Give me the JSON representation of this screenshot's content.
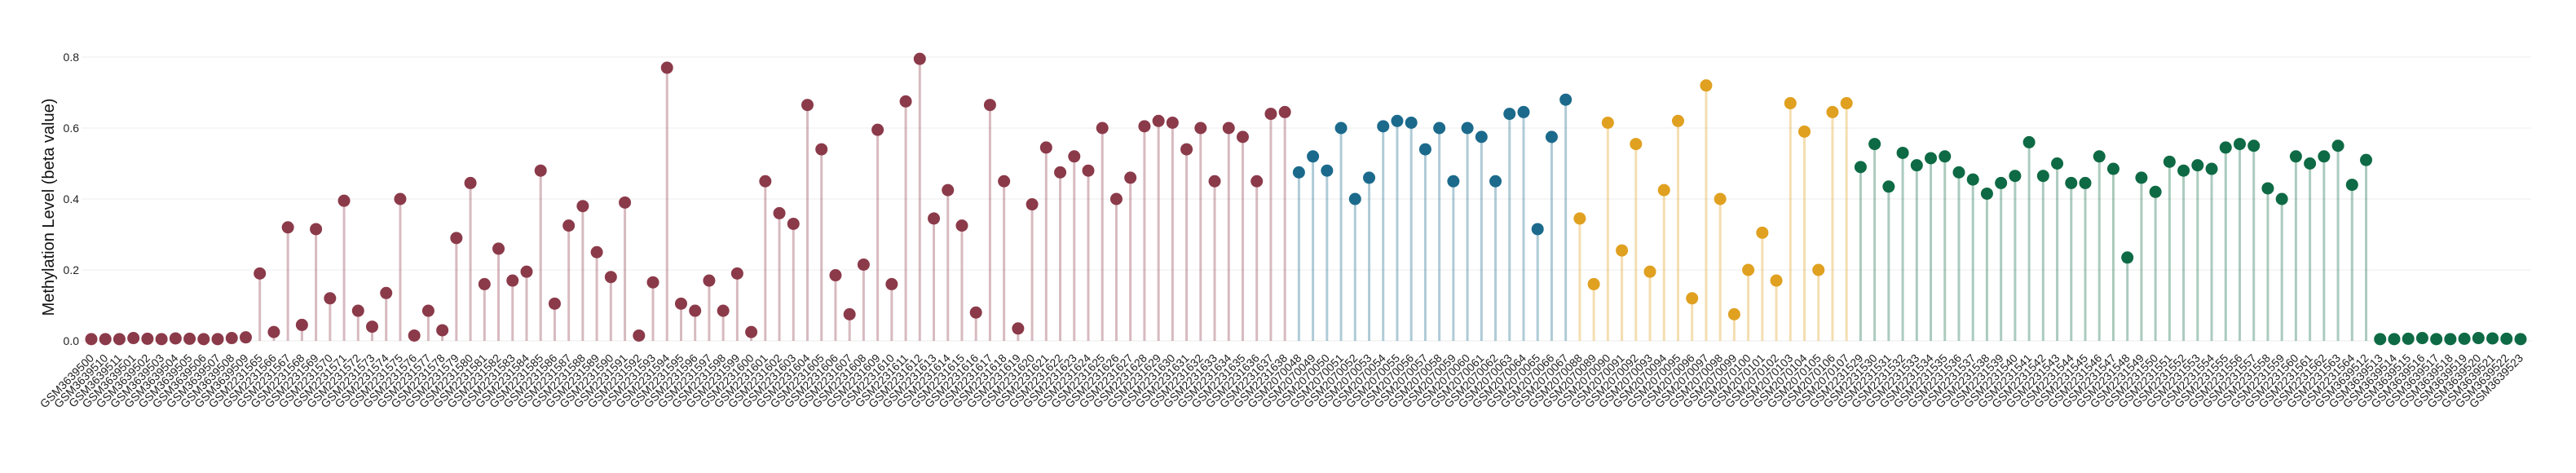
{
  "chart_data": {
    "type": "lollipop",
    "ylabel": "Methylation Level (beta value)",
    "ylim": [
      0,
      0.85
    ],
    "y_ticks": [
      "0.0",
      "0.2",
      "0.4",
      "0.6",
      "0.8"
    ],
    "grid": true,
    "legend": "none",
    "colors": {
      "red": "#8B3A4A",
      "blue": "#1B6A8C",
      "gold": "#E0A020",
      "green": "#0E6A44"
    },
    "series": [
      {
        "color": "red",
        "samples": [
          "GSM3639500",
          "GSM3639510",
          "GSM3639511",
          "GSM3639501",
          "GSM3639502",
          "GSM3639503",
          "GSM3639504",
          "GSM3639505",
          "GSM3639506",
          "GSM3639507",
          "GSM3639508",
          "GSM3639509"
        ],
        "values": [
          0.005,
          0.005,
          0.005,
          0.008,
          0.006,
          0.005,
          0.007,
          0.006,
          0.005,
          0.005,
          0.008,
          0.01
        ]
      },
      {
        "color": "red",
        "samples": [
          "GSM2231565",
          "GSM2231566",
          "GSM2231567",
          "GSM2231568",
          "GSM2231569",
          "GSM2231570",
          "GSM2231571",
          "GSM2231572",
          "GSM2231573",
          "GSM2231574",
          "GSM2231575",
          "GSM2231576",
          "GSM2231577",
          "GSM2231578",
          "GSM2231579",
          "GSM2231580",
          "GSM2231581",
          "GSM2231582",
          "GSM2231583",
          "GSM2231584",
          "GSM2231585",
          "GSM2231586",
          "GSM2231587",
          "GSM2231588",
          "GSM2231589",
          "GSM2231590",
          "GSM2231591",
          "GSM2231592",
          "GSM2231593",
          "GSM2231594",
          "GSM2231595",
          "GSM2231596",
          "GSM2231597",
          "GSM2231598",
          "GSM2231599",
          "GSM2231600",
          "GSM2231601",
          "GSM2231602",
          "GSM2231603",
          "GSM2231604",
          "GSM2231605",
          "GSM2231606",
          "GSM2231607",
          "GSM2231608",
          "GSM2231609",
          "GSM2231610",
          "GSM2231611",
          "GSM2231612",
          "GSM2231613",
          "GSM2231614",
          "GSM2231615",
          "GSM2231616",
          "GSM2231617",
          "GSM2231618",
          "GSM2231619",
          "GSM2231620",
          "GSM2231621",
          "GSM2231622",
          "GSM2231623",
          "GSM2231624",
          "GSM2231625",
          "GSM2231626",
          "GSM2231627",
          "GSM2231628",
          "GSM2231629",
          "GSM2231630",
          "GSM2231631",
          "GSM2231632",
          "GSM2231633",
          "GSM2231634",
          "GSM2231635",
          "GSM2231636",
          "GSM2231637",
          "GSM2231638"
        ],
        "values": [
          0.19,
          0.025,
          0.32,
          0.045,
          0.315,
          0.12,
          0.395,
          0.085,
          0.04,
          0.135,
          0.4,
          0.015,
          0.085,
          0.03,
          0.29,
          0.445,
          0.16,
          0.26,
          0.17,
          0.195,
          0.48,
          0.105,
          0.325,
          0.38,
          0.25,
          0.18,
          0.39,
          0.015,
          0.165,
          0.77,
          0.105,
          0.085,
          0.17,
          0.085,
          0.19,
          0.025,
          0.45,
          0.36,
          0.33,
          0.665,
          0.54,
          0.185,
          0.075,
          0.215,
          0.595,
          0.16,
          0.675,
          0.795,
          0.345,
          0.425,
          0.325,
          0.08,
          0.665,
          0.45,
          0.035,
          0.385,
          0.545,
          0.475,
          0.52,
          0.48,
          0.6,
          0.4,
          0.46,
          0.605,
          0.62,
          0.615,
          0.54,
          0.6,
          0.45,
          0.6,
          0.575,
          0.45,
          0.64,
          0.645
        ]
      },
      {
        "color": "blue",
        "samples": [
          "GSM2070048",
          "GSM2070049",
          "GSM2070050",
          "GSM2070051",
          "GSM2070052",
          "GSM2070053",
          "GSM2070054",
          "GSM2070055",
          "GSM2070056",
          "GSM2070057",
          "GSM2070058",
          "GSM2070059",
          "GSM2070060",
          "GSM2070061",
          "GSM2070062",
          "GSM2070063",
          "GSM2070064",
          "GSM2070065",
          "GSM2070066",
          "GSM2070067"
        ],
        "values": [
          0.475,
          0.52,
          0.48,
          0.6,
          0.4,
          0.46,
          0.605,
          0.62,
          0.615,
          0.54,
          0.6,
          0.45,
          0.6,
          0.575,
          0.45,
          0.64,
          0.645,
          0.315,
          0.575,
          0.68
        ]
      },
      {
        "color": "gold",
        "samples": [
          "GSM2070088",
          "GSM2070089",
          "GSM2070090",
          "GSM2070091",
          "GSM2070092",
          "GSM2070093",
          "GSM2070094",
          "GSM2070095",
          "GSM2070096",
          "GSM2070097",
          "GSM2070098",
          "GSM2070099",
          "GSM2070100",
          "GSM2070101",
          "GSM2070102",
          "GSM2070103",
          "GSM2070104",
          "GSM2070105",
          "GSM2070106",
          "GSM2070107"
        ],
        "values": [
          0.345,
          0.16,
          0.615,
          0.255,
          0.555,
          0.195,
          0.425,
          0.62,
          0.12,
          0.72,
          0.4,
          0.075,
          0.2,
          0.305,
          0.17,
          0.67,
          0.59,
          0.2,
          0.645,
          0.67
        ]
      },
      {
        "color": "green",
        "samples": [
          "GSM2231529",
          "GSM2231530",
          "GSM2231531",
          "GSM2231532",
          "GSM2231533",
          "GSM2231534",
          "GSM2231535",
          "GSM2231536",
          "GSM2231537",
          "GSM2231538",
          "GSM2231539",
          "GSM2231540",
          "GSM2231541",
          "GSM2231542",
          "GSM2231543",
          "GSM2231544",
          "GSM2231545",
          "GSM2231546",
          "GSM2231547",
          "GSM2231548",
          "GSM2231549",
          "GSM2231550",
          "GSM2231551",
          "GSM2231552",
          "GSM2231553",
          "GSM2231554",
          "GSM2231555",
          "GSM2231556",
          "GSM2231557",
          "GSM2231558",
          "GSM2231559",
          "GSM2231560",
          "GSM2231561",
          "GSM2231562",
          "GSM2231563",
          "GSM2231564"
        ],
        "values": [
          0.49,
          0.555,
          0.435,
          0.53,
          0.495,
          0.515,
          0.52,
          0.475,
          0.455,
          0.415,
          0.445,
          0.465,
          0.56,
          0.465,
          0.5,
          0.445,
          0.445,
          0.52,
          0.485,
          0.235,
          0.46,
          0.42,
          0.505,
          0.48,
          0.495,
          0.485,
          0.545,
          0.555,
          0.55,
          0.43,
          0.4,
          0.52,
          0.5,
          0.52,
          0.55,
          0.44
        ]
      },
      {
        "color": "green",
        "samples": [
          "GSM3639512",
          "GSM3639513",
          "GSM3639514",
          "GSM3639515",
          "GSM3639516",
          "GSM3639517",
          "GSM3639518",
          "GSM3639519",
          "GSM3639520",
          "GSM3639521",
          "GSM3639522",
          "GSM3639523"
        ],
        "values": [
          0.51,
          0.005,
          0.005,
          0.006,
          0.008,
          0.005,
          0.005,
          0.006,
          0.008,
          0.007,
          0.006,
          0.005
        ]
      }
    ]
  }
}
